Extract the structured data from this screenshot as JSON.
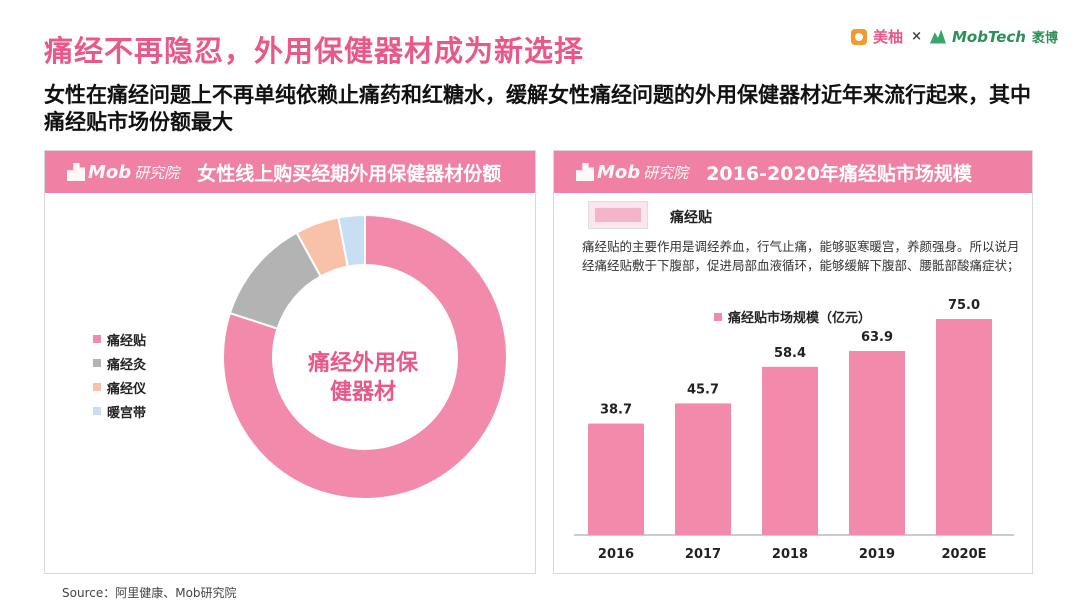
{
  "header": {
    "title": "痛经不再隐忍，外用保健器材成为新选择",
    "subtitle": "女性在痛经问题上不再单纯依赖止痛药和红糖水，缓解女性痛经问题的外用保健器材近年来流行起来，其中痛经贴市场份额最大"
  },
  "brand": {
    "meiyou": "美柚",
    "times": "×",
    "mobtech": "MobTech",
    "mobtech_cn": "袤博"
  },
  "left_panel": {
    "logo_text": "Mob",
    "logo_cn": "研究院",
    "title": "女性线上购买经期外用保健器材份额",
    "center_label": "痛经外用保健器材"
  },
  "right_panel": {
    "logo_text": "Mob",
    "logo_cn": "研究院",
    "title": "2016-2020年痛经贴市场规模",
    "product_name": "痛经贴",
    "description": "痛经贴的主要作用是调经养血，行气止痛，能够驱寒暖宫，养颜强身。所以说月经痛经贴敷于下腹部，促进局部血液循环，能够缓解下腹部、腰骶部酸痛症状；",
    "legend_label": "痛经贴市场规模（亿元）"
  },
  "source": "Source：阿里健康、Mob研究院",
  "chart_data": [
    {
      "type": "pie",
      "categories": [
        "痛经贴",
        "痛经灸",
        "痛经仪",
        "暖宫带"
      ],
      "values": [
        80,
        12,
        5,
        3
      ],
      "colors": [
        "#f28aab",
        "#b3b3b3",
        "#f8c2a8",
        "#c8def2"
      ],
      "title": "女性线上购买经期外用保健器材份额",
      "legend_position": "left"
    },
    {
      "type": "bar",
      "categories": [
        "2016",
        "2017",
        "2018",
        "2019",
        "2020E"
      ],
      "values": [
        38.7,
        45.7,
        58.4,
        63.9,
        75.0
      ],
      "labels": [
        "38.7",
        "45.7",
        "58.4",
        "63.9",
        "75.0"
      ],
      "series_name": "痛经贴市场规模（亿元）",
      "title": "2016-2020年痛经贴市场规模",
      "ylim": [
        0,
        80
      ],
      "grid": false,
      "color": "#f28aab"
    }
  ]
}
